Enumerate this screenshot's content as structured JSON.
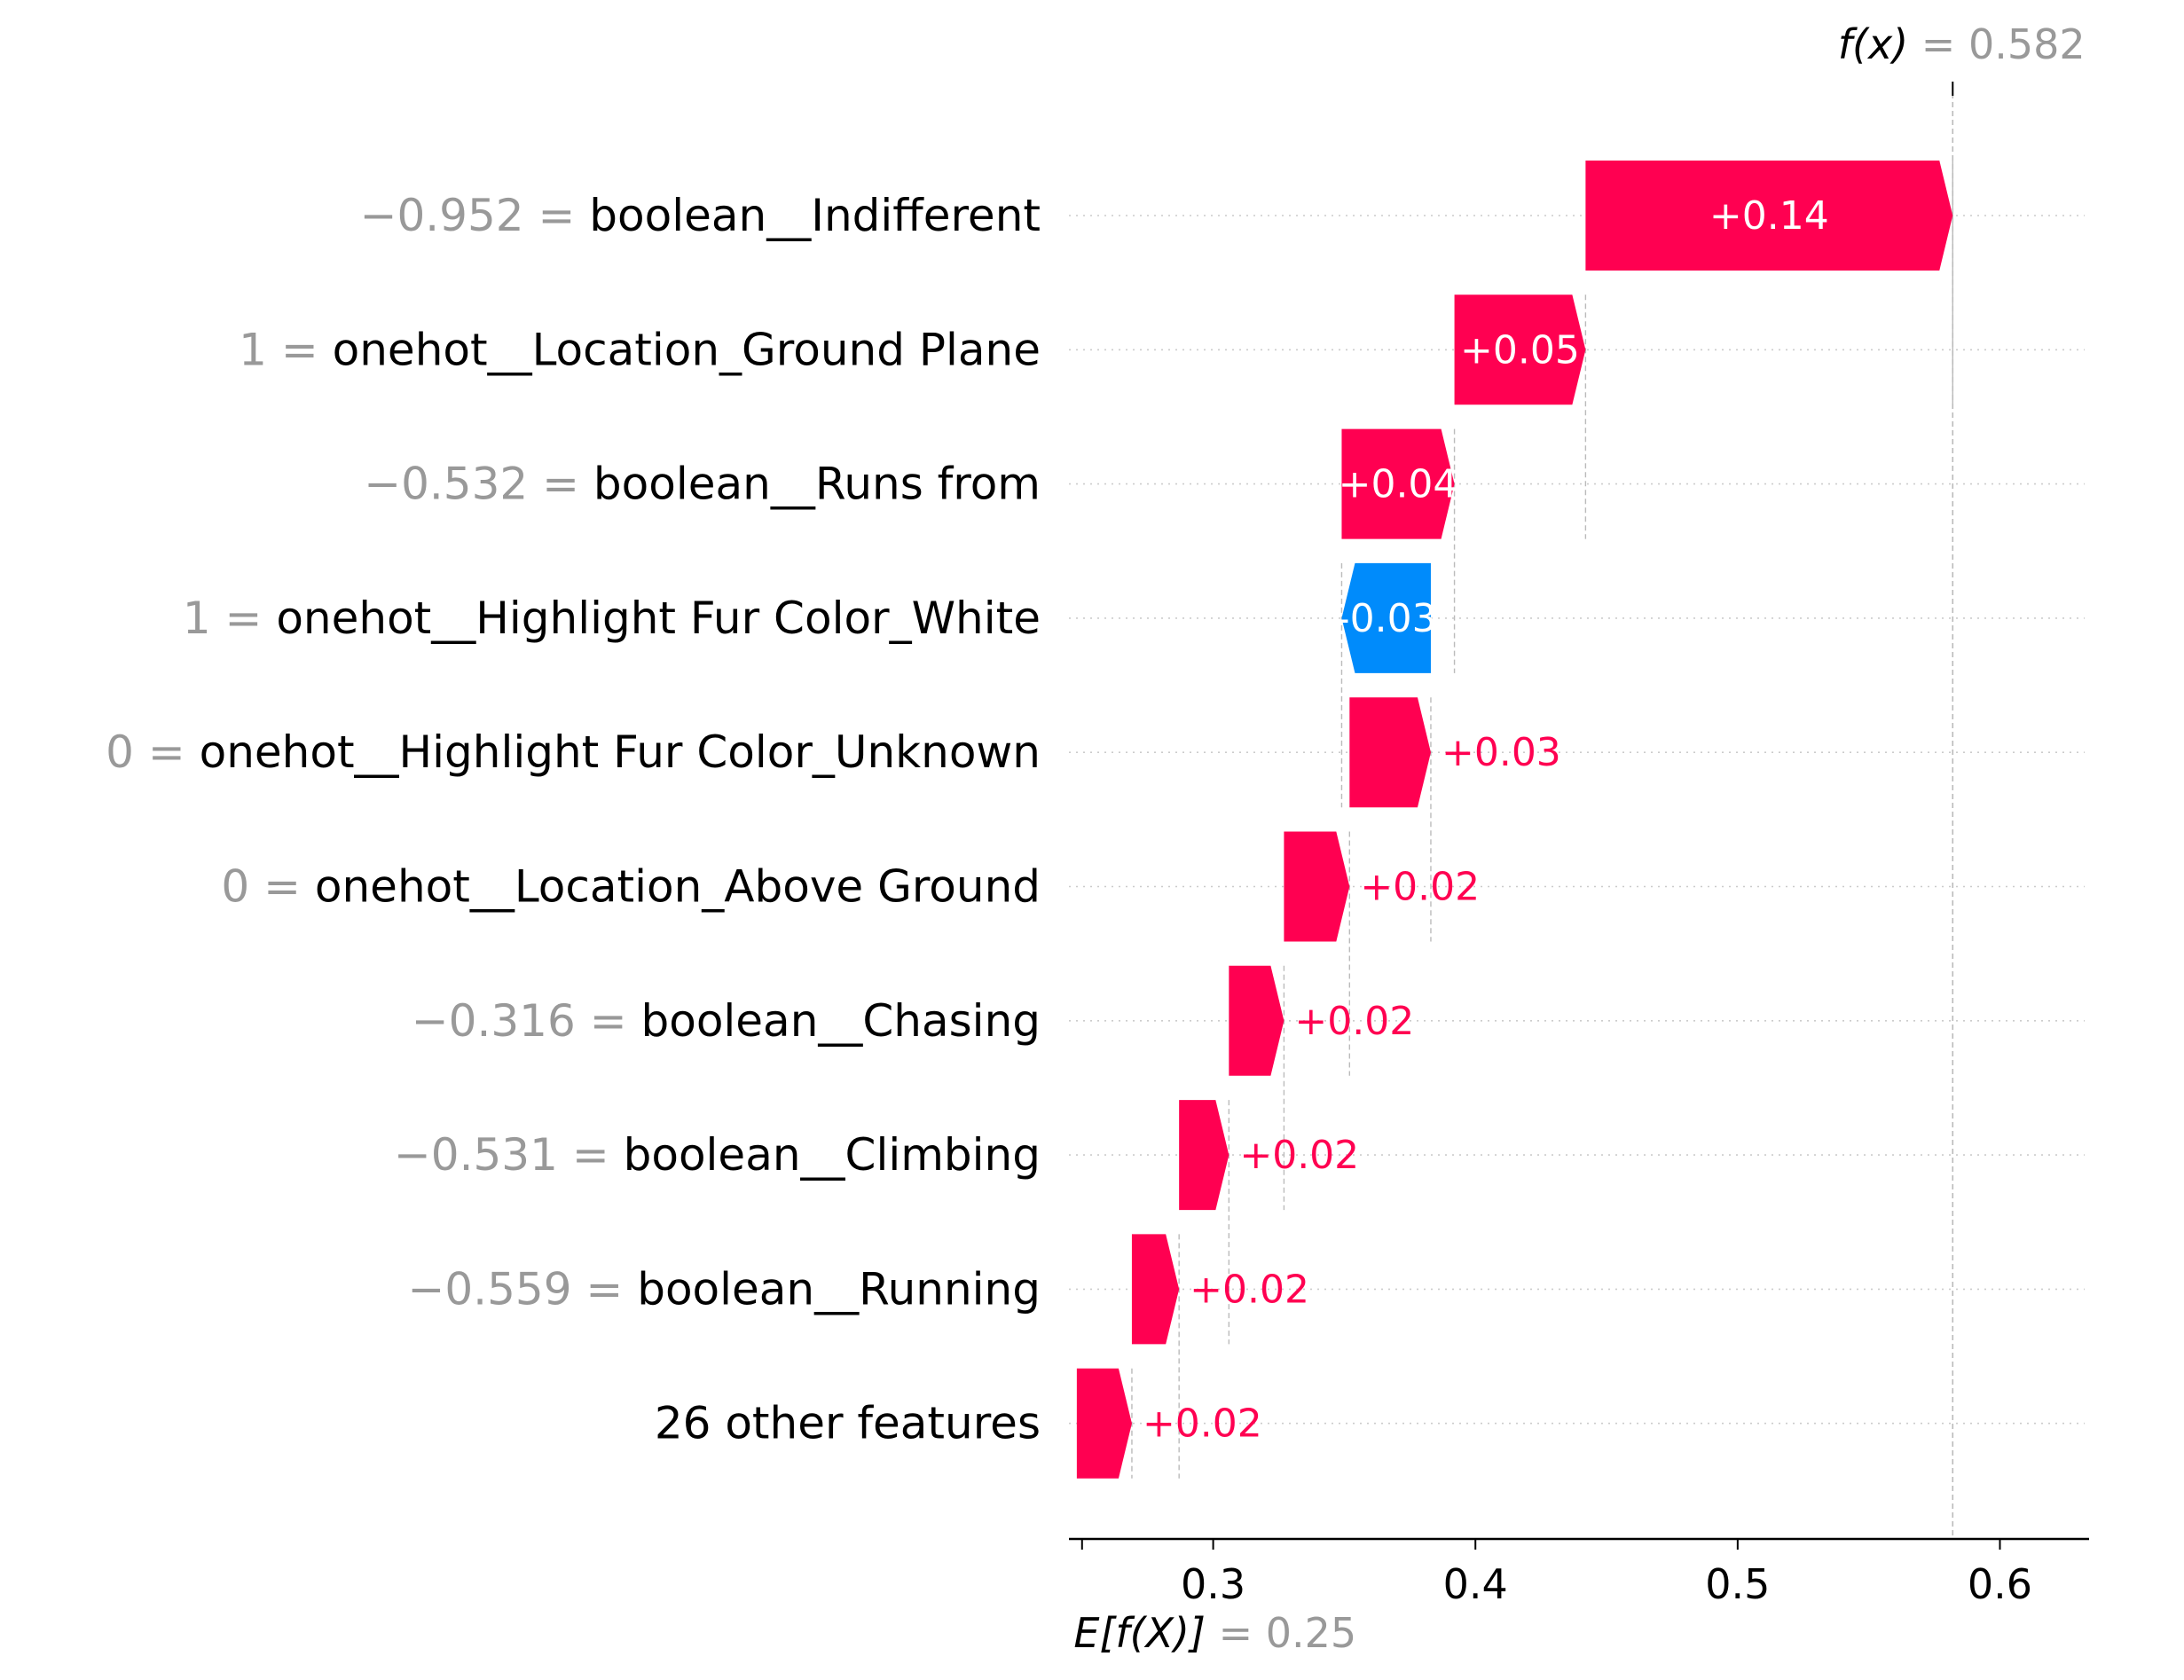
{
  "chart_data": {
    "type": "waterfall",
    "fx": {
      "label_lhs": "f(x)",
      "value": "0.582",
      "numeric": 0.582
    },
    "ex": {
      "label_lhs": "E[f(X)]",
      "value": "0.25",
      "numeric": 0.25
    },
    "features": [
      {
        "value_label": "−0.952",
        "name": "boolean__Indifferent",
        "shap": 0.14,
        "shap_label": "+0.14",
        "start": 0.442,
        "end": 0.582,
        "label_inside": true
      },
      {
        "value_label": "1",
        "name": "onehot__Location_Ground Plane",
        "shap": 0.05,
        "shap_label": "+0.05",
        "start": 0.392,
        "end": 0.442,
        "label_inside": true
      },
      {
        "value_label": "−0.532",
        "name": "boolean__Runs from",
        "shap": 0.04,
        "shap_label": "+0.04",
        "start": 0.349,
        "end": 0.392,
        "label_inside": true
      },
      {
        "value_label": "1",
        "name": "onehot__Highlight Fur Color_White",
        "shap": -0.03,
        "shap_label": "-0.03",
        "start": 0.383,
        "end": 0.349,
        "label_inside": true
      },
      {
        "value_label": "0",
        "name": "onehot__Highlight Fur Color_Unknown",
        "shap": 0.03,
        "shap_label": "+0.03",
        "start": 0.352,
        "end": 0.383,
        "label_inside": false
      },
      {
        "value_label": "0",
        "name": "onehot__Location_Above Ground",
        "shap": 0.02,
        "shap_label": "+0.02",
        "start": 0.327,
        "end": 0.352,
        "label_inside": false
      },
      {
        "value_label": "−0.316",
        "name": "boolean__Chasing",
        "shap": 0.02,
        "shap_label": "+0.02",
        "start": 0.306,
        "end": 0.327,
        "label_inside": false
      },
      {
        "value_label": "−0.531",
        "name": "boolean__Climbing",
        "shap": 0.02,
        "shap_label": "+0.02",
        "start": 0.287,
        "end": 0.306,
        "label_inside": false
      },
      {
        "value_label": "−0.559",
        "name": "boolean__Running",
        "shap": 0.02,
        "shap_label": "+0.02",
        "start": 0.269,
        "end": 0.287,
        "label_inside": false
      },
      {
        "value_label": "",
        "name": "26 other features",
        "shap": 0.02,
        "shap_label": "+0.02",
        "start": 0.248,
        "end": 0.269,
        "label_inside": false
      }
    ],
    "x_ticks": [
      0.3,
      0.4,
      0.5,
      0.6
    ],
    "x_tick_labels": [
      "0.3",
      "0.4",
      "0.5",
      "0.6"
    ],
    "xlim": [
      0.245,
      0.634
    ],
    "colors": {
      "positive": "#ff0051",
      "negative": "#008bfb",
      "value_gray": "#999999",
      "text": "#000000",
      "grid": "#cccccc"
    }
  }
}
